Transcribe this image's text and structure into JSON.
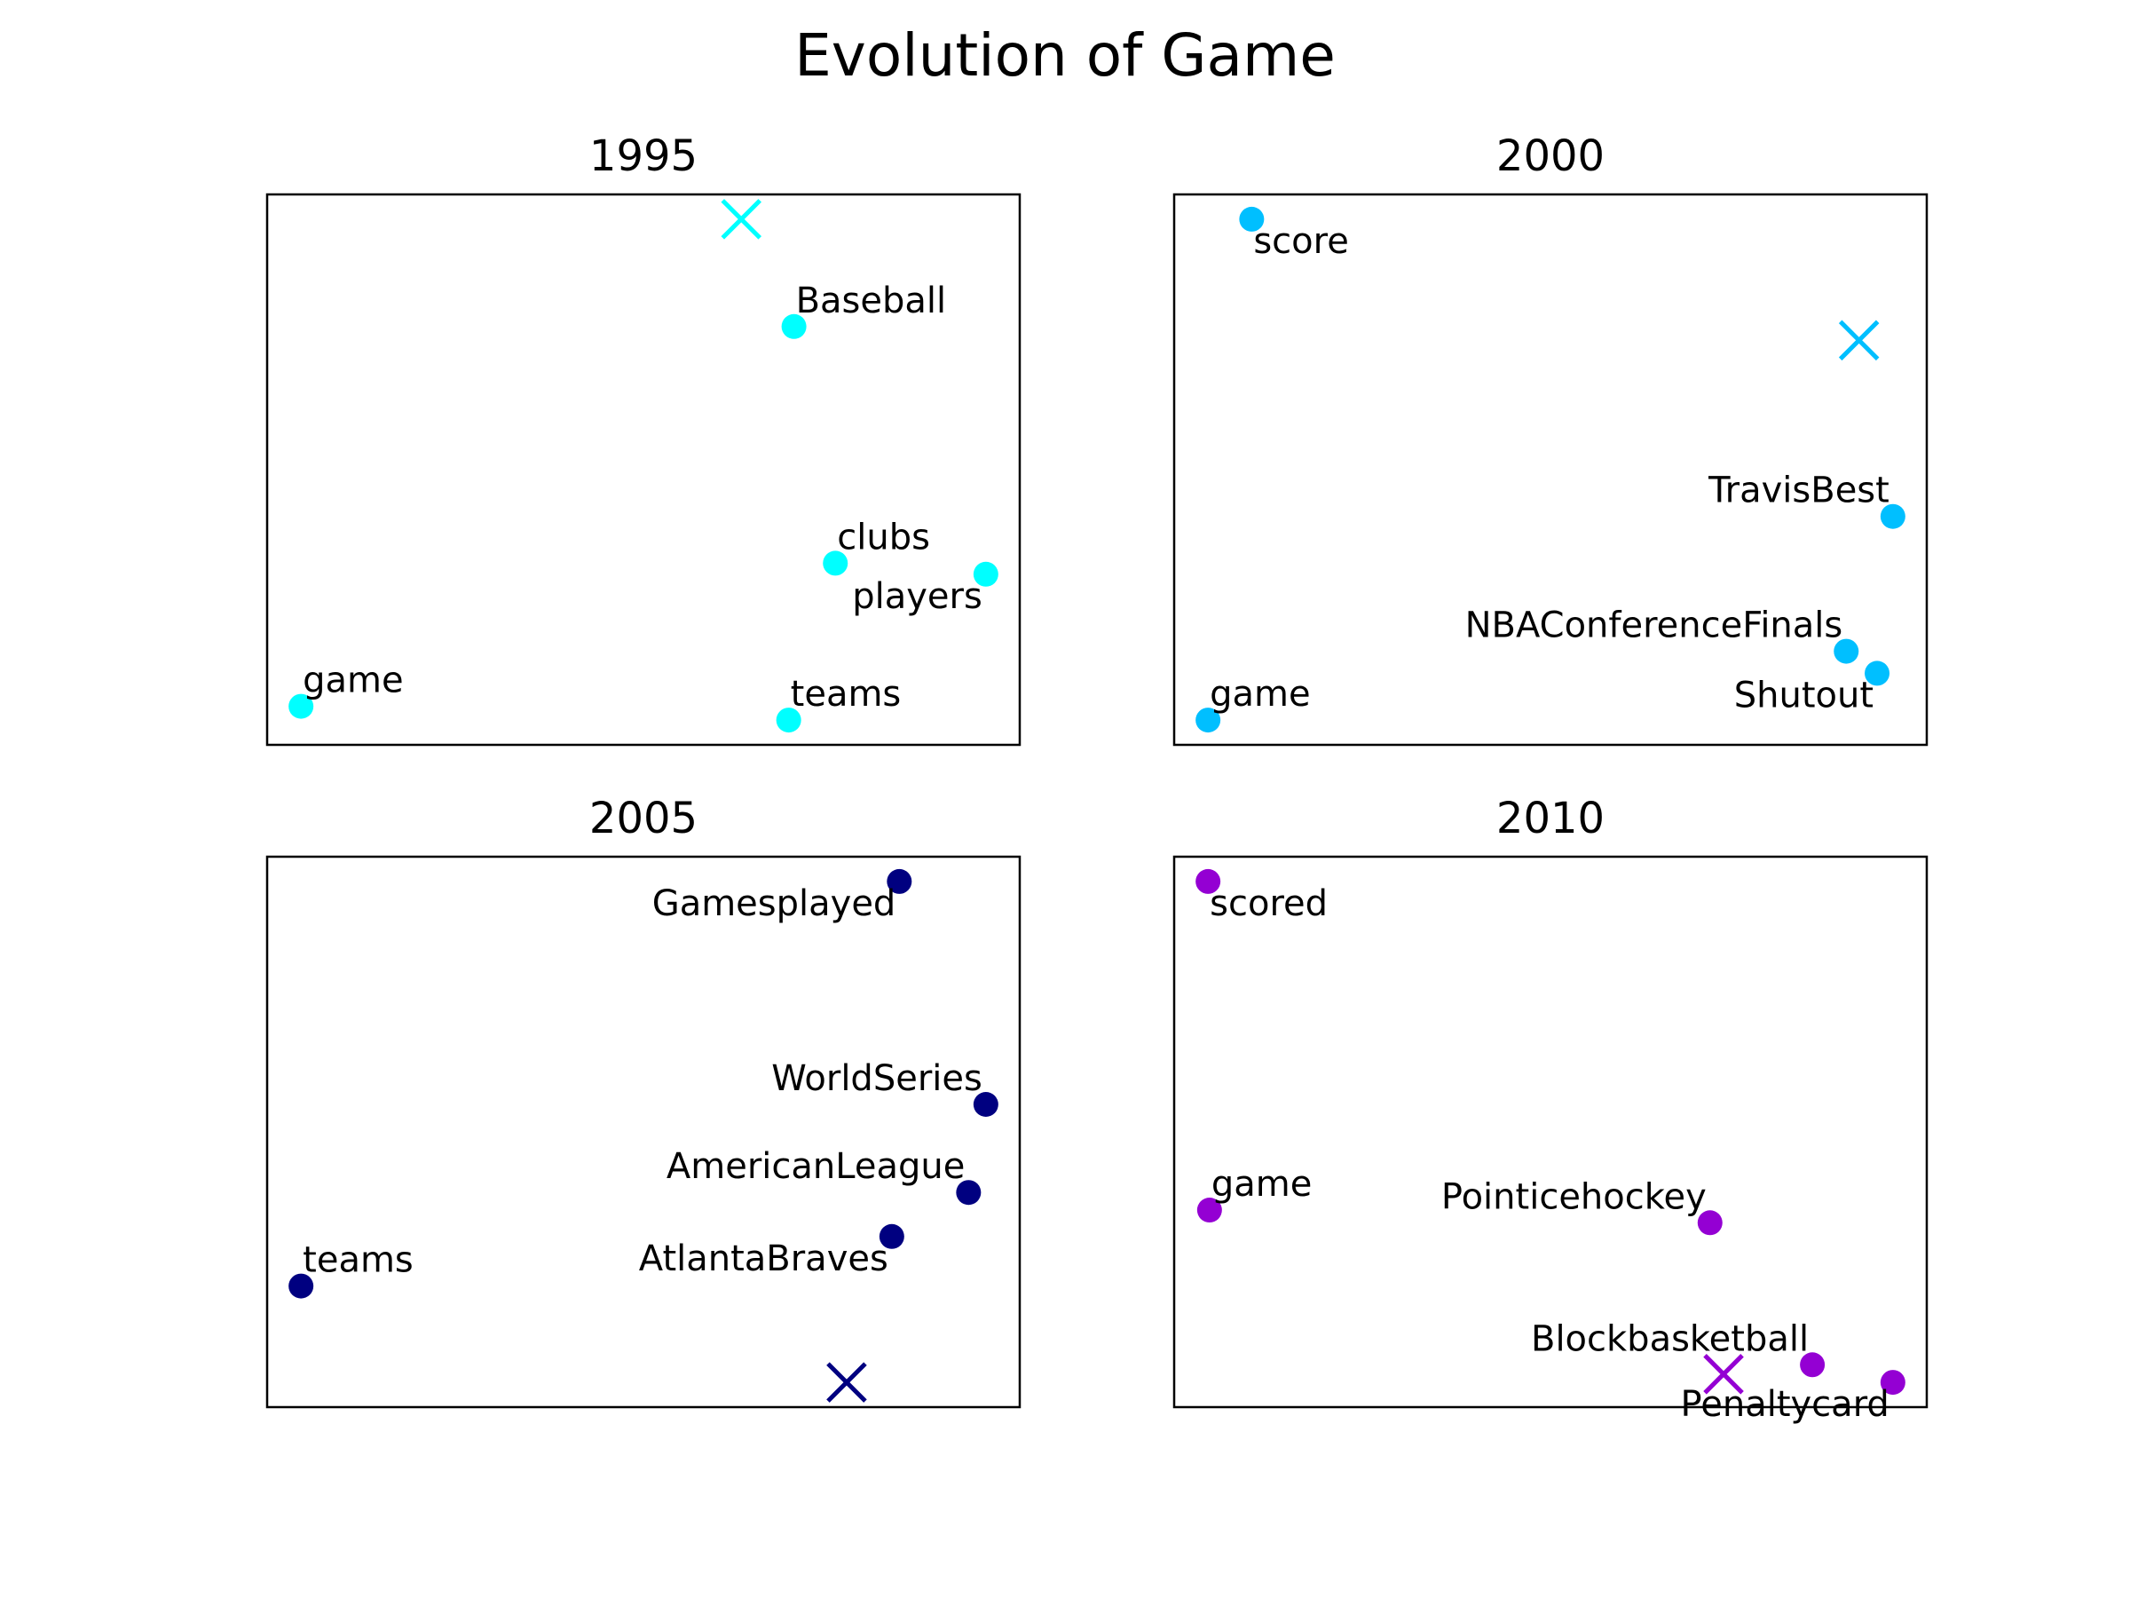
{
  "figure": {
    "title": "Evolution of Game"
  },
  "chart_data": [
    {
      "type": "scatter",
      "title": "1995",
      "color": "#00ffff",
      "xlim": [
        0,
        1
      ],
      "ylim": [
        0,
        1
      ],
      "axes_ticks": "none",
      "points": [
        {
          "label": "game",
          "x": 0.045,
          "y": 0.07,
          "label_pos": "above-right"
        },
        {
          "label": "teams",
          "x": 0.693,
          "y": 0.045,
          "label_pos": "above-right"
        },
        {
          "label": "clubs",
          "x": 0.755,
          "y": 0.33,
          "label_pos": "above-right"
        },
        {
          "label": "players",
          "x": 0.955,
          "y": 0.31,
          "label_pos": "below-left"
        },
        {
          "label": "Baseball",
          "x": 0.7,
          "y": 0.76,
          "label_pos": "above-right"
        }
      ],
      "marker_x": {
        "x": 0.63,
        "y": 0.955
      }
    },
    {
      "type": "scatter",
      "title": "2000",
      "color": "#00bfff",
      "xlim": [
        0,
        1
      ],
      "ylim": [
        0,
        1
      ],
      "axes_ticks": "none",
      "points": [
        {
          "label": "game",
          "x": 0.045,
          "y": 0.045,
          "label_pos": "above-right"
        },
        {
          "label": "score",
          "x": 0.103,
          "y": 0.955,
          "label_pos": "below-right"
        },
        {
          "label": "TravisBest",
          "x": 0.955,
          "y": 0.415,
          "label_pos": "above-left"
        },
        {
          "label": "NBAConferenceFinals",
          "x": 0.893,
          "y": 0.17,
          "label_pos": "above-left"
        },
        {
          "label": "Shutout",
          "x": 0.934,
          "y": 0.13,
          "label_pos": "below-left"
        }
      ],
      "marker_x": {
        "x": 0.91,
        "y": 0.735
      }
    },
    {
      "type": "scatter",
      "title": "2005",
      "color": "#000080",
      "xlim": [
        0,
        1
      ],
      "ylim": [
        0,
        1
      ],
      "axes_ticks": "none",
      "points": [
        {
          "label": "teams",
          "x": 0.045,
          "y": 0.22,
          "label_pos": "above-right"
        },
        {
          "label": "AtlantaBraves",
          "x": 0.83,
          "y": 0.31,
          "label_pos": "below-left"
        },
        {
          "label": "AmericanLeague",
          "x": 0.932,
          "y": 0.39,
          "label_pos": "above-left"
        },
        {
          "label": "WorldSeries",
          "x": 0.955,
          "y": 0.55,
          "label_pos": "above-left"
        },
        {
          "label": "Gamesplayed",
          "x": 0.84,
          "y": 0.955,
          "label_pos": "below-left"
        }
      ],
      "marker_x": {
        "x": 0.77,
        "y": 0.045
      }
    },
    {
      "type": "scatter",
      "title": "2010",
      "color": "#9400d3",
      "xlim": [
        0,
        1
      ],
      "ylim": [
        0,
        1
      ],
      "axes_ticks": "none",
      "points": [
        {
          "label": "scored",
          "x": 0.045,
          "y": 0.955,
          "label_pos": "below-right"
        },
        {
          "label": "game",
          "x": 0.047,
          "y": 0.358,
          "label_pos": "above-right"
        },
        {
          "label": "Pointicehockey",
          "x": 0.712,
          "y": 0.335,
          "label_pos": "above-left"
        },
        {
          "label": "Blockbasketball",
          "x": 0.848,
          "y": 0.077,
          "label_pos": "above-left"
        },
        {
          "label": "Penaltycard",
          "x": 0.955,
          "y": 0.045,
          "label_pos": "below-left"
        }
      ],
      "marker_x": {
        "x": 0.73,
        "y": 0.06
      }
    }
  ]
}
